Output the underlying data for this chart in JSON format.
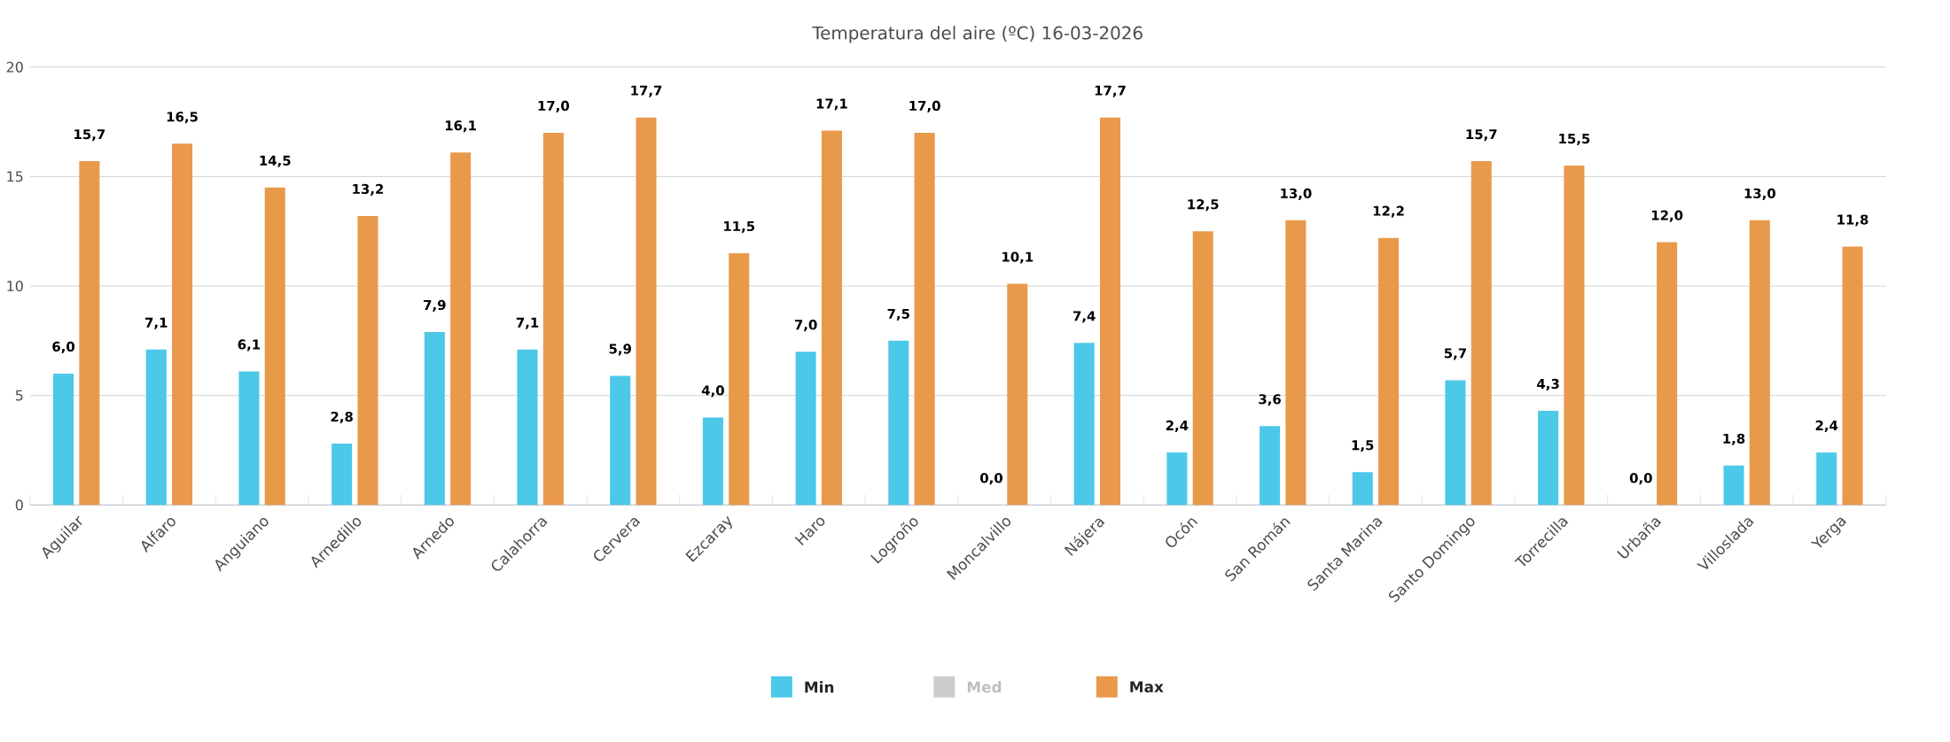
{
  "chart_data": {
    "type": "bar",
    "title": "Temperatura del aire (ºC) 16-03-2026",
    "categories": [
      "Aguilar",
      "Alfaro",
      "Anguiano",
      "Arnedillo",
      "Arnedo",
      "Calahorra",
      "Cervera",
      "Ezcaray",
      "Haro",
      "Logroño",
      "Moncalvillo",
      "Nájera",
      "Ocón",
      "San Román",
      "Santa Marina",
      "Santo Domingo",
      "Torrecilla",
      "Urbaña",
      "Villoslada",
      "Yerga"
    ],
    "series": [
      {
        "name": "Min",
        "color": "#4cc8e8",
        "values": [
          6.0,
          7.1,
          6.1,
          2.8,
          7.9,
          7.1,
          5.9,
          4.0,
          7.0,
          7.5,
          0.0,
          7.4,
          2.4,
          3.6,
          1.5,
          5.7,
          4.3,
          0.0,
          1.8,
          2.4
        ],
        "value_labels": [
          "6,0",
          "7,1",
          "6,1",
          "2,8",
          "7,9",
          "7,1",
          "5,9",
          "4,0",
          "7,0",
          "7,5",
          "0,0",
          "7,4",
          "2,4",
          "3,6",
          "1,5",
          "5,7",
          "4,3",
          "0,0",
          "1,8",
          "2,4"
        ]
      },
      {
        "name": "Med",
        "color": "#cccccc",
        "values": [
          null,
          null,
          null,
          null,
          null,
          null,
          null,
          null,
          null,
          null,
          null,
          null,
          null,
          null,
          null,
          null,
          null,
          null,
          null,
          null
        ]
      },
      {
        "name": "Max",
        "color": "#e8994a",
        "values": [
          15.7,
          16.5,
          14.5,
          13.2,
          16.1,
          17.0,
          17.7,
          11.5,
          17.1,
          17.0,
          10.1,
          17.7,
          12.5,
          13.0,
          12.2,
          15.7,
          15.5,
          12.0,
          13.0,
          11.8
        ],
        "value_labels": [
          "15,7",
          "16,5",
          "14,5",
          "13,2",
          "16,1",
          "17,0",
          "17,7",
          "11,5",
          "17,1",
          "17,0",
          "10,1",
          "17,7",
          "12,5",
          "13,0",
          "12,2",
          "15,7",
          "15,5",
          "12,0",
          "13,0",
          "11,8"
        ]
      }
    ],
    "ylim": [
      0,
      20
    ],
    "yticks": [
      0,
      5,
      10,
      15,
      20
    ],
    "grid": "y",
    "legend": "bottom"
  }
}
